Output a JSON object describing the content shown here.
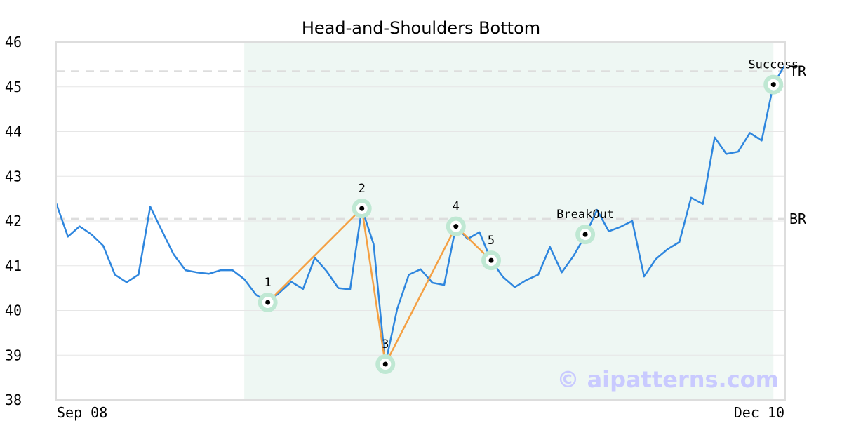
{
  "chart_data": {
    "type": "line",
    "title": "Head-and-Shoulders Bottom",
    "x_tick_labels": [
      "Sep 08",
      "Dec 10"
    ],
    "y_ticks": [
      38,
      39,
      40,
      41,
      42,
      43,
      44,
      45,
      46
    ],
    "ylim": [
      38,
      46
    ],
    "grid": "horizontal",
    "pattern_region": {
      "x_start_index": 16,
      "x_end_index": 61,
      "color": "#eef7f3"
    },
    "reference_lines": [
      {
        "label": "TR",
        "value": 45.35
      },
      {
        "label": "BR",
        "value": 42.05
      }
    ],
    "series": [
      {
        "color": "#2e86de",
        "values": [
          42.4,
          41.65,
          41.88,
          41.7,
          41.45,
          40.8,
          40.63,
          40.8,
          42.32,
          41.78,
          41.25,
          40.9,
          40.85,
          40.82,
          40.9,
          40.9,
          40.7,
          40.35,
          40.18,
          40.4,
          40.64,
          40.48,
          41.18,
          40.88,
          40.5,
          40.47,
          42.28,
          41.48,
          38.8,
          40.03,
          40.8,
          40.92,
          40.62,
          40.57,
          41.88,
          41.6,
          41.75,
          41.12,
          40.75,
          40.52,
          40.68,
          40.8,
          41.42,
          40.85,
          41.22,
          41.68,
          42.25,
          41.77,
          41.87,
          42.0,
          40.76,
          41.15,
          41.37,
          41.53,
          42.52,
          42.38,
          43.87,
          43.5,
          43.55,
          43.97,
          43.8,
          45.05,
          45.5
        ]
      },
      {
        "color": "#f4a043",
        "values": [
          40.18,
          42.28,
          38.8,
          41.88,
          41.12
        ]
      }
    ],
    "annotations": [
      {
        "label": "1",
        "index": 18,
        "value": 40.18
      },
      {
        "label": "2",
        "index": 26,
        "value": 42.28
      },
      {
        "label": "3",
        "index": 28,
        "value": 38.8
      },
      {
        "label": "4",
        "index": 34,
        "value": 41.88
      },
      {
        "label": "5",
        "index": 37,
        "value": 41.12
      },
      {
        "label": "BreakOut",
        "index": 45,
        "value": 41.7
      },
      {
        "label": "Success",
        "index": 61,
        "value": 45.05
      }
    ],
    "pattern_point_indices": [
      18,
      26,
      28,
      34,
      37
    ]
  },
  "watermark": "© aipatterns.com",
  "colors": {
    "price_line": "#2e86de",
    "pattern_line": "#f4a043",
    "marker_halo": "#bfe8d3",
    "reference_line": "#dddddd",
    "grid": "#e6e6e6",
    "frame": "#dddddd"
  }
}
